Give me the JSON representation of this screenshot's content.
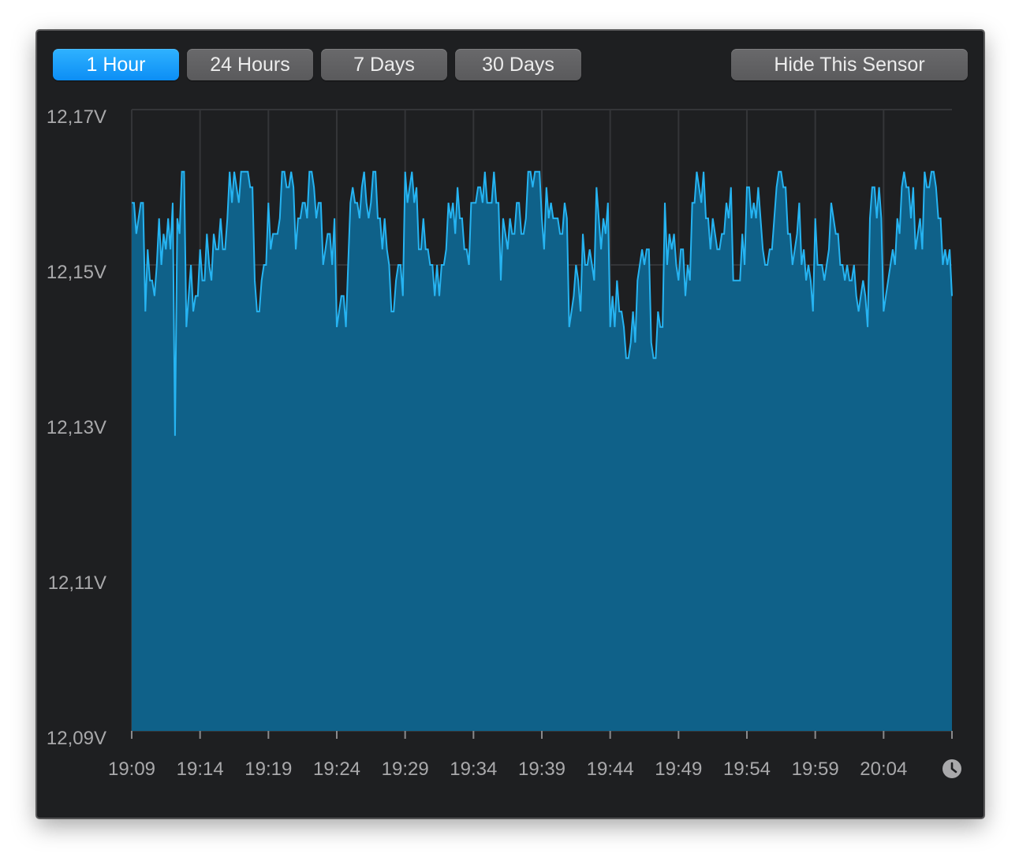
{
  "toolbar": {
    "buttons": [
      {
        "label": "1 Hour",
        "active": true
      },
      {
        "label": "24 Hours",
        "active": false
      },
      {
        "label": "7 Days",
        "active": false
      },
      {
        "label": "30 Days",
        "active": false
      }
    ],
    "hide_label": "Hide This Sensor"
  },
  "colors": {
    "line": "#26b4f2",
    "fill": "#0f6189",
    "background": "#1e1f21",
    "accent": "#1a9cf8"
  },
  "icons": {
    "clock": "clock-icon"
  },
  "chart_data": {
    "type": "area",
    "title": "",
    "xlabel": "",
    "ylabel": "",
    "grid": true,
    "ylim": [
      12.09,
      12.17
    ],
    "y_ticks": [
      "12,17V",
      "12,15V",
      "12,13V",
      "12,11V",
      "12,09V"
    ],
    "x_ticks": [
      "19:09",
      "19:14",
      "19:19",
      "19:24",
      "19:29",
      "19:34",
      "19:39",
      "19:44",
      "19:49",
      "19:54",
      "19:59",
      "20:04"
    ],
    "x": [
      "19:09",
      "19:10",
      "19:11",
      "19:12",
      "19:13",
      "19:14",
      "19:15",
      "19:16",
      "19:17",
      "19:18",
      "19:19",
      "19:20",
      "19:21",
      "19:22",
      "19:23",
      "19:24",
      "19:25",
      "19:26",
      "19:27",
      "19:28",
      "19:29",
      "19:30",
      "19:31",
      "19:32",
      "19:33",
      "19:34",
      "19:35",
      "19:36",
      "19:37",
      "19:38",
      "19:39",
      "19:40",
      "19:41",
      "19:42",
      "19:43",
      "19:44",
      "19:45",
      "19:46",
      "19:47",
      "19:48",
      "19:49",
      "19:50",
      "19:51",
      "19:52",
      "19:53",
      "19:54",
      "19:55",
      "19:56",
      "19:57",
      "19:58",
      "19:59",
      "20:00",
      "20:01",
      "20:02",
      "20:03",
      "20:04",
      "20:05",
      "20:06",
      "20:07",
      "20:08",
      "20:09"
    ],
    "series": [
      {
        "values": [
          12.158,
          12.148,
          12.154,
          12.158,
          12.146,
          12.15,
          12.154,
          12.16,
          12.162,
          12.148,
          12.154,
          12.162,
          12.154,
          12.16,
          12.152,
          12.146,
          12.158,
          12.16,
          12.154,
          12.148,
          12.162,
          12.154,
          12.15,
          12.156,
          12.154,
          12.162,
          12.158,
          12.152,
          12.154,
          12.16,
          12.156,
          12.154,
          12.146,
          12.152,
          12.156,
          12.144,
          12.14,
          12.152,
          12.142,
          12.154,
          12.15,
          12.16,
          12.152,
          12.156,
          12.15,
          12.158,
          12.152,
          12.16,
          12.154,
          12.148,
          12.152,
          12.154,
          12.15,
          12.146,
          12.16,
          12.148,
          12.158,
          12.156,
          12.162,
          12.154,
          12.15
        ]
      }
    ],
    "y_min_marker": {
      "x": "19:12",
      "y": 12.128
    }
  }
}
